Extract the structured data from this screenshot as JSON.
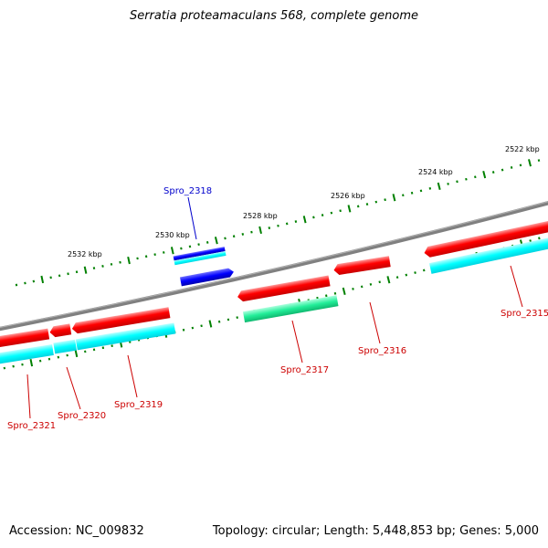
{
  "title": "Serratia proteamaculans 568, complete genome",
  "footer": {
    "accession": "Accession: NC_009832",
    "summary": "Topology: circular; Length: 5,448,853 bp; Genes: 5,000"
  },
  "scale_labels": [
    "2522 kbp",
    "2524 kbp",
    "2526 kbp",
    "2528 kbp",
    "2530 kbp",
    "2532 kbp"
  ],
  "gene_labels": [
    "Spro_2315",
    "Spro_2316",
    "Spro_2317",
    "Spro_2318",
    "Spro_2319",
    "Spro_2320",
    "Spro_2321"
  ],
  "colors": {
    "backbone": "#808080",
    "forward_gene": "#ff0000",
    "forward_cds": "#00ffff",
    "highlight_gene": "#0000ff",
    "rna_cds": "#33ee99",
    "tick": "#008000",
    "selected_label": "#0000cc",
    "gene_label": "#cc0000"
  }
}
